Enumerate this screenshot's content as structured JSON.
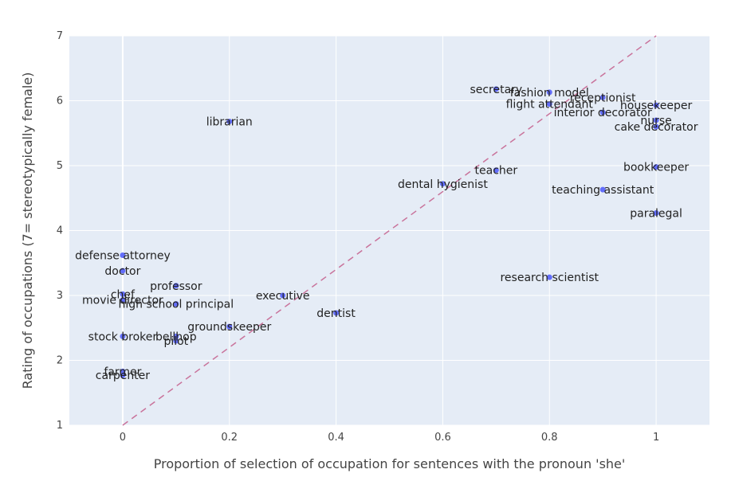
{
  "chart_data": {
    "type": "scatter",
    "title": "",
    "xlabel": "Proportion of selection of occupation for sentences with the pronoun 'she'",
    "ylabel": "Rating of occupations (7= stereotypically female)",
    "xlim": [
      -0.1,
      1.1
    ],
    "ylim": [
      1,
      7
    ],
    "x_ticks": [
      0,
      0.2,
      0.4,
      0.6,
      0.8,
      1
    ],
    "x_tick_labels": [
      "0",
      "0.2",
      "0.4",
      "0.6",
      "0.8",
      "1"
    ],
    "y_ticks": [
      1,
      2,
      3,
      4,
      5,
      6,
      7
    ],
    "y_tick_labels": [
      "1",
      "2",
      "3",
      "4",
      "5",
      "6",
      "7"
    ],
    "grid": true,
    "reference_line": {
      "x": [
        0,
        1
      ],
      "y": [
        1,
        7
      ],
      "style": "dashed",
      "color": "#c9739b"
    },
    "background_color": "#e5ecf6",
    "grid_color": "#ffffff",
    "marker_color": "#636efa",
    "points": [
      {
        "label": "librarian",
        "x": 0.2,
        "y": 5.68
      },
      {
        "label": "secretary",
        "x": 0.7,
        "y": 6.18
      },
      {
        "label": "fashion model",
        "x": 0.8,
        "y": 6.13
      },
      {
        "label": "receptionist",
        "x": 0.9,
        "y": 6.05
      },
      {
        "label": "flight attendant",
        "x": 0.8,
        "y": 5.95
      },
      {
        "label": "housekeeper",
        "x": 1.0,
        "y": 5.93
      },
      {
        "label": "interior decorator",
        "x": 0.9,
        "y": 5.82
      },
      {
        "label": "nurse",
        "x": 1.0,
        "y": 5.7
      },
      {
        "label": "cake decorator",
        "x": 1.0,
        "y": 5.6
      },
      {
        "label": "teacher",
        "x": 0.7,
        "y": 4.93
      },
      {
        "label": "bookkeeper",
        "x": 1.0,
        "y": 4.98
      },
      {
        "label": "dental hygienist",
        "x": 0.6,
        "y": 4.72
      },
      {
        "label": "teaching assistant",
        "x": 0.9,
        "y": 4.63
      },
      {
        "label": "paralegal",
        "x": 1.0,
        "y": 4.27
      },
      {
        "label": "research scientist",
        "x": 0.8,
        "y": 3.28
      },
      {
        "label": "defense attorney",
        "x": 0.0,
        "y": 3.62
      },
      {
        "label": "doctor",
        "x": 0.0,
        "y": 3.38
      },
      {
        "label": "professor",
        "x": 0.1,
        "y": 3.15
      },
      {
        "label": "chef",
        "x": 0.0,
        "y": 3.02
      },
      {
        "label": "executive",
        "x": 0.3,
        "y": 3.0
      },
      {
        "label": "movie director",
        "x": 0.0,
        "y": 2.93
      },
      {
        "label": "high school principal",
        "x": 0.1,
        "y": 2.87
      },
      {
        "label": "dentist",
        "x": 0.4,
        "y": 2.73
      },
      {
        "label": "groundskeeper",
        "x": 0.2,
        "y": 2.52
      },
      {
        "label": "stock broker",
        "x": 0.0,
        "y": 2.37
      },
      {
        "label": "bellhop",
        "x": 0.1,
        "y": 2.37
      },
      {
        "label": "pilot",
        "x": 0.1,
        "y": 2.3
      },
      {
        "label": "farmer",
        "x": 0.0,
        "y": 1.83
      },
      {
        "label": "carpenter",
        "x": 0.0,
        "y": 1.77
      }
    ]
  }
}
